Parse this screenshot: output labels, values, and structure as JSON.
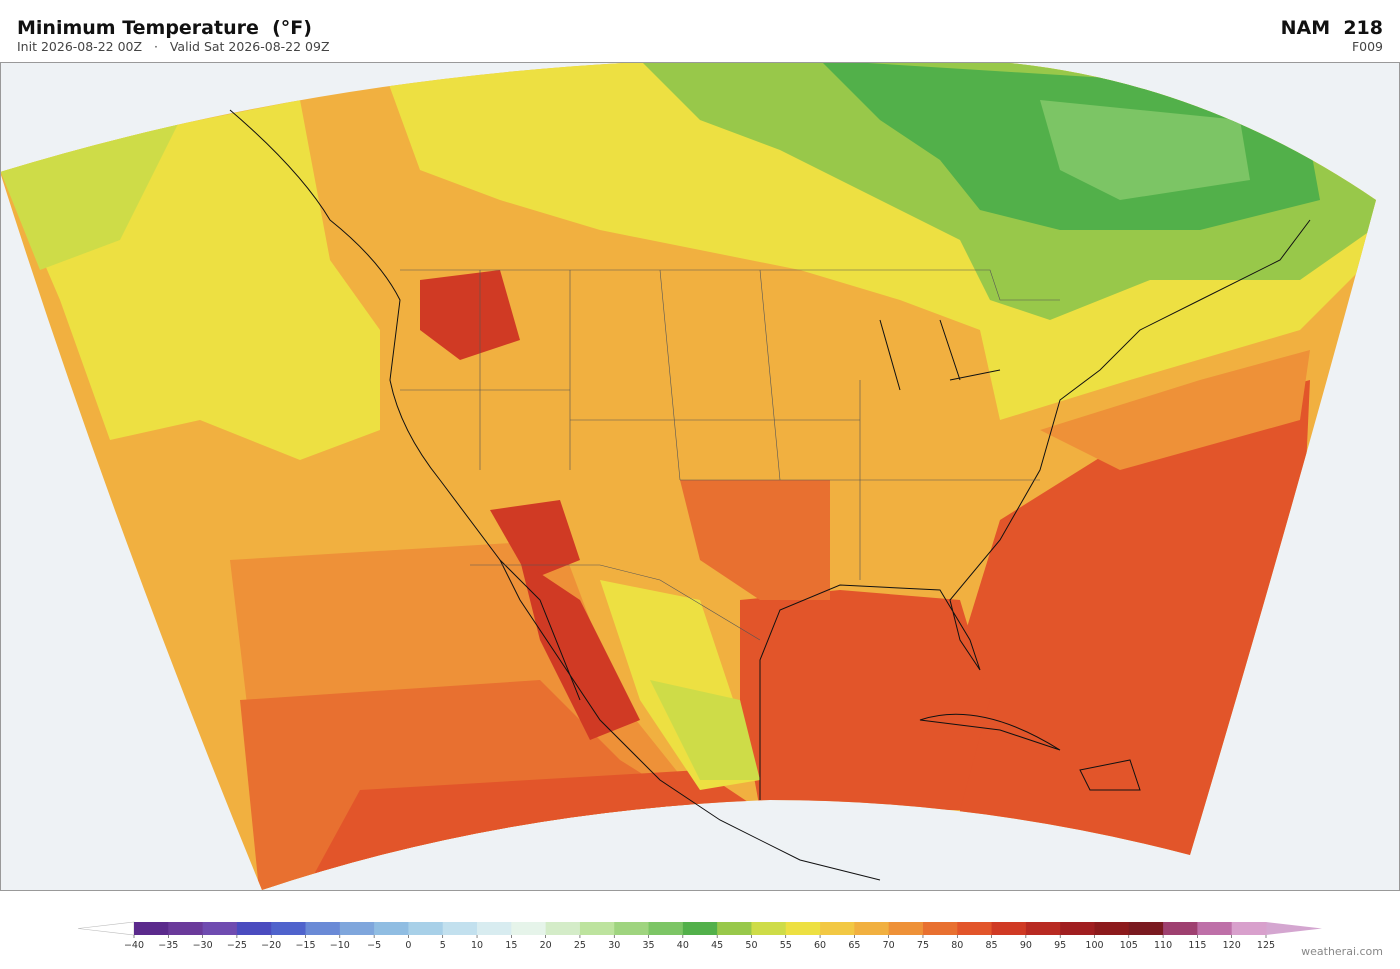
{
  "header": {
    "title": "Minimum Temperature  (°F)",
    "subtitle": "Init 2026-08-22 00Z   ·   Valid Sat 2026-08-22 09Z",
    "model": "NAM  218",
    "forecast_hour": "F009"
  },
  "colorbar": {
    "ticks": [
      {
        "value": -40,
        "label": "−40"
      },
      {
        "value": -35,
        "label": "−35"
      },
      {
        "value": -30,
        "label": "−30"
      },
      {
        "value": -25,
        "label": "−25"
      },
      {
        "value": -20,
        "label": "−20"
      },
      {
        "value": -15,
        "label": "−15"
      },
      {
        "value": -10,
        "label": "−10"
      },
      {
        "value": -5,
        "label": "−5"
      },
      0,
      5,
      10,
      15,
      20,
      25,
      30,
      35,
      40,
      45,
      50,
      55,
      60,
      65,
      70,
      75,
      80,
      85,
      90,
      95,
      100,
      105,
      110,
      115,
      120,
      125
    ],
    "colors": [
      "#5b2a8c",
      "#6a3a9a",
      "#6f4bb0",
      "#4a4bbf",
      "#4f63cc",
      "#6a8ad6",
      "#7fa6dc",
      "#90bde2",
      "#a8d0e8",
      "#c2e0ee",
      "#d8ecf0",
      "#e6f4ea",
      "#d4ecc8",
      "#bde39e",
      "#9fd47f",
      "#7cc565",
      "#52b04a",
      "#98c84a",
      "#cedc48",
      "#ede042",
      "#f2c844",
      "#f1b040",
      "#ee9138",
      "#e87030",
      "#e2552a",
      "#d03a24",
      "#b82a22",
      "#a01e20",
      "#8c1a1c",
      "#7a1a20",
      "#9e4070",
      "#be70a8",
      "#d8a0cc"
    ],
    "under_color": "#ffffff",
    "over_color": "#d4a6d0"
  },
  "footer": {
    "credit": "weatherai.com"
  }
}
